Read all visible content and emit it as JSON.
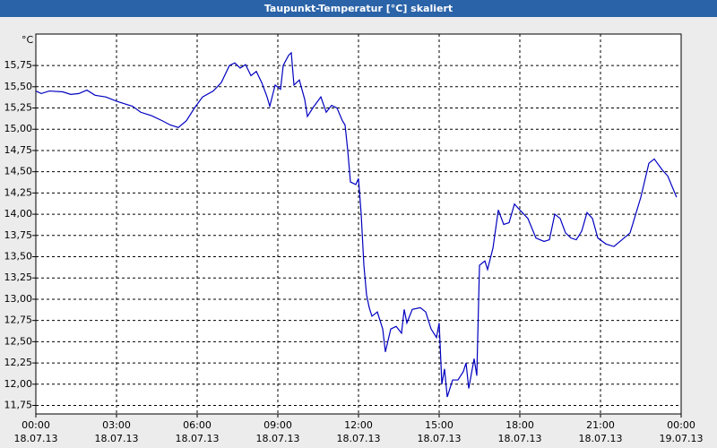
{
  "chart_data": {
    "type": "line",
    "title": "Taupunkt-Temperatur [°C] skaliert",
    "y_unit": "°C",
    "xlim": [
      0,
      24
    ],
    "ylim": [
      11.65,
      16.12
    ],
    "xticks": [
      {
        "value": 0,
        "label": "00:00"
      },
      {
        "value": 3,
        "label": "03:00"
      },
      {
        "value": 6,
        "label": "06:00"
      },
      {
        "value": 9,
        "label": "09:00"
      },
      {
        "value": 12,
        "label": "12:00"
      },
      {
        "value": 15,
        "label": "15:00"
      },
      {
        "value": 18,
        "label": "18:00"
      },
      {
        "value": 21,
        "label": "21:00"
      },
      {
        "value": 24,
        "label": "00:00"
      }
    ],
    "xtick_dates": [
      "18.07.13",
      "18.07.13",
      "18.07.13",
      "18.07.13",
      "18.07.13",
      "18.07.13",
      "18.07.13",
      "18.07.13",
      "19.07.13"
    ],
    "yticks": [
      {
        "value": 11.75,
        "label": "11,75"
      },
      {
        "value": 12,
        "label": "12,00"
      },
      {
        "value": 12.25,
        "label": "12,25"
      },
      {
        "value": 12.5,
        "label": "12,50"
      },
      {
        "value": 12.75,
        "label": "12,75"
      },
      {
        "value": 13,
        "label": "13,00"
      },
      {
        "value": 13.25,
        "label": "13,25"
      },
      {
        "value": 13.5,
        "label": "13,50"
      },
      {
        "value": 13.75,
        "label": "13,75"
      },
      {
        "value": 14,
        "label": "14,00"
      },
      {
        "value": 14.25,
        "label": "14,25"
      },
      {
        "value": 14.5,
        "label": "14,50"
      },
      {
        "value": 14.75,
        "label": "14,75"
      },
      {
        "value": 15,
        "label": "15,00"
      },
      {
        "value": 15.25,
        "label": "15,25"
      },
      {
        "value": 15.5,
        "label": "15,50"
      },
      {
        "value": 15.75,
        "label": "15,75"
      }
    ],
    "grid": true,
    "color": "#0000c0",
    "x": [
      0,
      0.2,
      0.5,
      1.0,
      1.3,
      1.6,
      1.9,
      2.2,
      2.6,
      3.0,
      3.3,
      3.6,
      3.9,
      4.3,
      4.7,
      5.0,
      5.3,
      5.6,
      5.9,
      6.2,
      6.6,
      6.9,
      7.2,
      7.4,
      7.6,
      7.8,
      8.0,
      8.2,
      8.4,
      8.6,
      8.7,
      8.9,
      9.1,
      9.2,
      9.4,
      9.5,
      9.6,
      9.8,
      10.0,
      10.1,
      10.3,
      10.6,
      10.8,
      11.0,
      11.2,
      11.4,
      11.5,
      11.6,
      11.7,
      11.9,
      12.0,
      12.1,
      12.2,
      12.3,
      12.4,
      12.5,
      12.7,
      12.9,
      13.0,
      13.2,
      13.4,
      13.6,
      13.7,
      13.8,
      14.0,
      14.3,
      14.5,
      14.7,
      14.9,
      15.0,
      15.1,
      15.2,
      15.3,
      15.5,
      15.7,
      15.9,
      16.0,
      16.1,
      16.3,
      16.4,
      16.5,
      16.7,
      16.8,
      17.0,
      17.2,
      17.4,
      17.6,
      17.8,
      18.0,
      18.3,
      18.6,
      18.9,
      19.1,
      19.3,
      19.5,
      19.7,
      19.9,
      20.1,
      20.3,
      20.5,
      20.7,
      20.9,
      21.2,
      21.5,
      21.8,
      22.1,
      22.5,
      22.8,
      23.0,
      23.3,
      23.5,
      23.83
    ],
    "values": [
      15.45,
      15.42,
      15.45,
      15.44,
      15.41,
      15.42,
      15.46,
      15.4,
      15.38,
      15.33,
      15.3,
      15.27,
      15.2,
      15.16,
      15.1,
      15.05,
      15.02,
      15.1,
      15.25,
      15.38,
      15.45,
      15.55,
      15.75,
      15.78,
      15.72,
      15.76,
      15.63,
      15.68,
      15.55,
      15.38,
      15.27,
      15.52,
      15.47,
      15.75,
      15.87,
      15.9,
      15.52,
      15.58,
      15.35,
      15.15,
      15.25,
      15.38,
      15.2,
      15.28,
      15.25,
      15.1,
      15.05,
      14.75,
      14.38,
      14.35,
      14.42,
      14.0,
      13.4,
      13.05,
      12.9,
      12.8,
      12.85,
      12.65,
      12.38,
      12.65,
      12.68,
      12.6,
      12.88,
      12.72,
      12.88,
      12.9,
      12.85,
      12.65,
      12.55,
      12.72,
      12.0,
      12.18,
      11.85,
      12.05,
      12.05,
      12.15,
      12.25,
      11.95,
      12.3,
      12.1,
      13.4,
      13.45,
      13.35,
      13.6,
      14.05,
      13.88,
      13.9,
      14.12,
      14.05,
      13.95,
      13.72,
      13.68,
      13.7,
      14.0,
      13.95,
      13.78,
      13.72,
      13.7,
      13.8,
      14.02,
      13.95,
      13.72,
      13.65,
      13.62,
      13.7,
      13.78,
      14.2,
      14.6,
      14.65,
      14.52,
      14.45,
      14.2
    ]
  }
}
